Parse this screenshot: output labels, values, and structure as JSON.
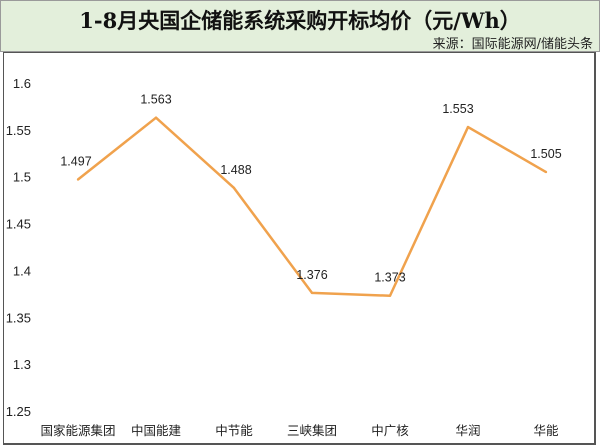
{
  "header": {
    "title": "1-8月央国企储能系统采购开标均价（元/Wh）",
    "source": "来源：国际能源网/储能头条"
  },
  "chart_data": {
    "type": "line",
    "title": "1-8月央国企储能系统采购开标均价（元/Wh）",
    "categories": [
      "国家能源集团",
      "中国能建",
      "中节能",
      "三峡集团",
      "中广核",
      "华润",
      "华能"
    ],
    "values": [
      1.497,
      1.563,
      1.488,
      1.376,
      1.373,
      1.553,
      1.505
    ],
    "ylim": [
      1.25,
      1.6
    ],
    "yticks": [
      "1.25",
      "1.3",
      "1.35",
      "1.4",
      "1.45",
      "1.5",
      "1.55",
      "1.6"
    ],
    "grid": false,
    "line_color": "#f0a24d"
  }
}
